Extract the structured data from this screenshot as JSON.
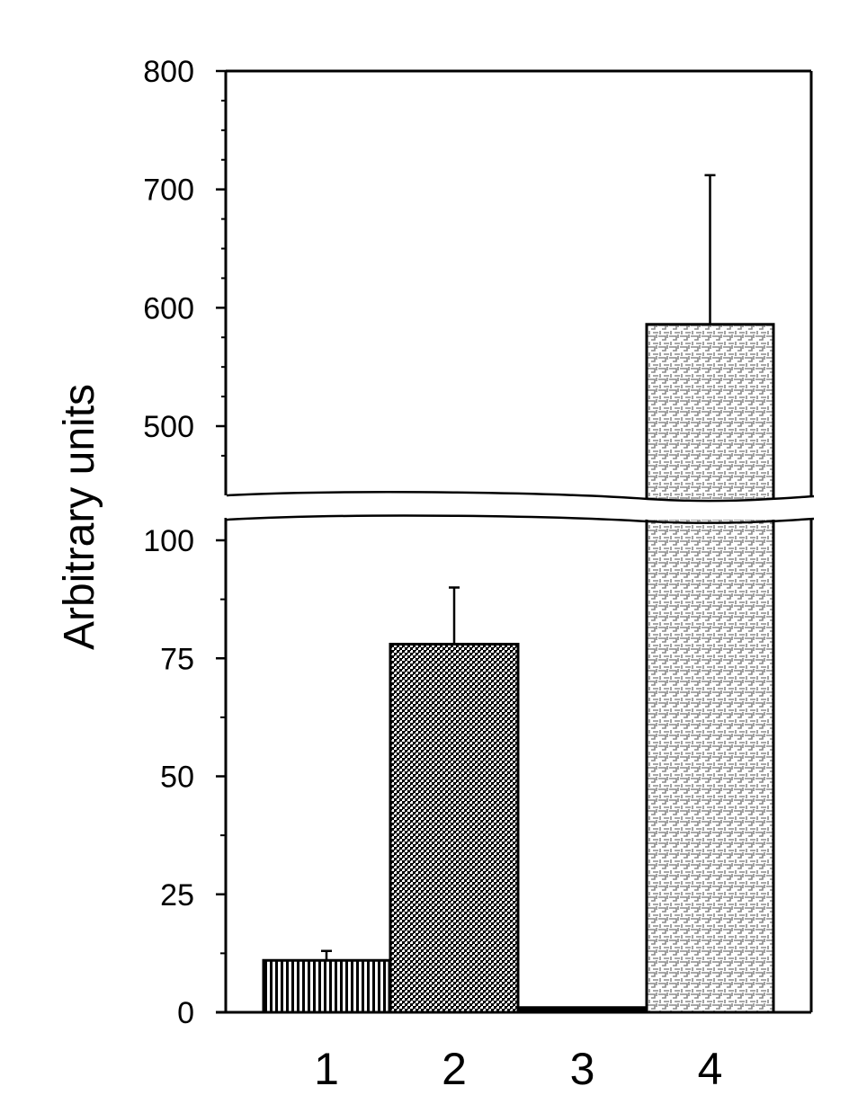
{
  "chart_data": {
    "type": "bar",
    "title": "",
    "xlabel": "",
    "ylabel": "Arbitrary units",
    "categories": [
      "1",
      "2",
      "3",
      "4"
    ],
    "values": [
      11,
      78,
      1,
      586
    ],
    "error_upper": [
      13,
      90,
      1,
      712
    ],
    "axis_break": {
      "lower": [
        0,
        100
      ],
      "upper": [
        450,
        800
      ]
    },
    "lower_ticks": [
      0,
      25,
      50,
      75,
      100
    ],
    "upper_ticks": [
      500,
      600,
      700,
      800
    ],
    "grid": false,
    "legend": "none",
    "patterns": [
      "vertical-stripes",
      "dense-checker",
      "solid-black",
      "light-key-pattern"
    ]
  }
}
